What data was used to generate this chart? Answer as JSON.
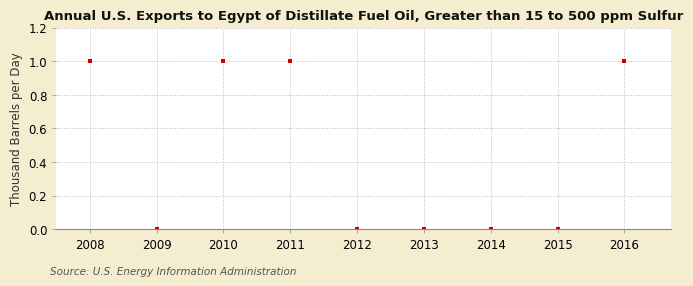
{
  "title": "Annual U.S. Exports to Egypt of Distillate Fuel Oil, Greater than 15 to 500 ppm Sulfur",
  "ylabel": "Thousand Barrels per Day",
  "source": "Source: U.S. Energy Information Administration",
  "figure_bg": "#F5EDCF",
  "plot_bg": "#FFFFFF",
  "years": [
    2008,
    2009,
    2010,
    2011,
    2012,
    2013,
    2014,
    2015,
    2016
  ],
  "values": [
    1.0,
    0.0,
    1.0,
    1.0,
    0.0,
    0.0,
    0.0,
    0.0,
    1.0
  ],
  "marker_color": "#CC0000",
  "marker_style": "s",
  "marker_size": 3.5,
  "ylim": [
    0.0,
    1.2
  ],
  "yticks": [
    0.0,
    0.2,
    0.4,
    0.6,
    0.8,
    1.0,
    1.2
  ],
  "xlim": [
    2007.5,
    2016.7
  ],
  "xticks": [
    2008,
    2009,
    2010,
    2011,
    2012,
    2013,
    2014,
    2015,
    2016
  ],
  "grid_color": "#AAAAAA",
  "grid_style": "--",
  "grid_alpha": 0.8,
  "title_fontsize": 9.5,
  "axis_label_fontsize": 8.5,
  "tick_fontsize": 8.5,
  "source_fontsize": 7.5
}
